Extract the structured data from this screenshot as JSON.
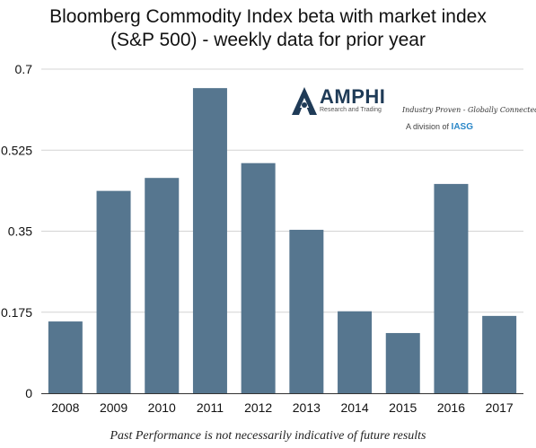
{
  "title_line1": "Bloomberg Commodity Index beta with market index",
  "title_line2": "(S&P 500) - weekly data for prior year",
  "footnote": "Past Performance is not necessarily indicative of future results",
  "logo": {
    "name": "AMPHI",
    "subtitle": "Research and Trading",
    "tagline": "Industry Proven - Globally Connected",
    "division_prefix": "A division of",
    "division_brand": "IASG"
  },
  "colors": {
    "bar": "#56768f",
    "grid": "#d4d4d4",
    "axis": "#333333"
  },
  "chart_data": {
    "type": "bar",
    "categories": [
      "2008",
      "2009",
      "2010",
      "2011",
      "2012",
      "2013",
      "2014",
      "2015",
      "2016",
      "2017"
    ],
    "values": [
      0.155,
      0.437,
      0.465,
      0.659,
      0.497,
      0.353,
      0.177,
      0.13,
      0.452,
      0.167
    ],
    "title": "Bloomberg Commodity Index beta with market index (S&P 500) - weekly data for prior year",
    "xlabel": "",
    "ylabel": "",
    "ylim": [
      0,
      0.7
    ],
    "yticks": [
      "0",
      "0.175",
      "0.35",
      "0.525",
      "0.7"
    ],
    "grid": true,
    "legend": "none"
  }
}
